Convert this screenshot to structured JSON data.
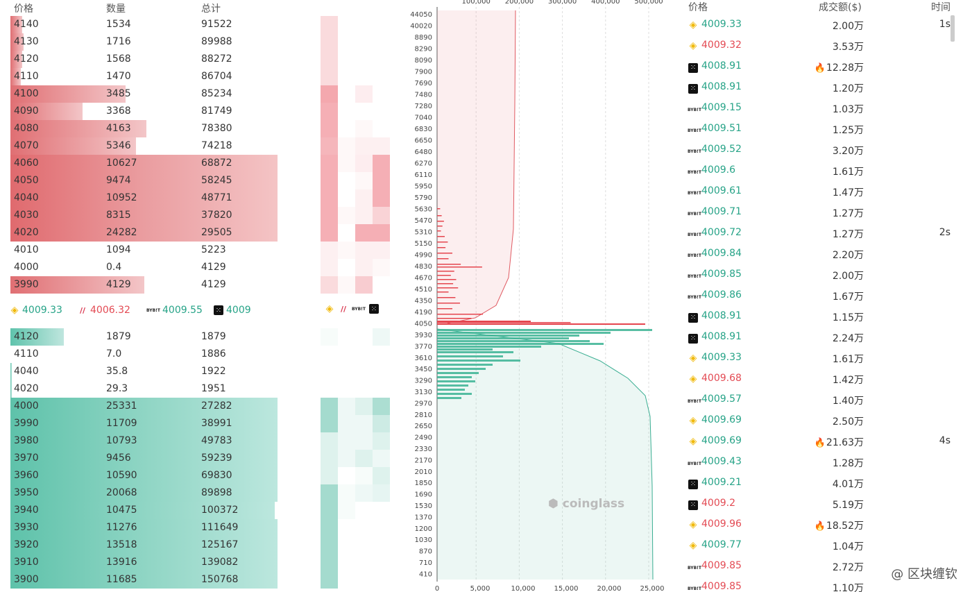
{
  "book": {
    "headers": {
      "price": "价格",
      "qty": "数量",
      "total": "总计"
    },
    "asks": [
      {
        "price": "4140",
        "qty": "1534",
        "total": "91522",
        "bar": 0.045
      },
      {
        "price": "4130",
        "qty": "1716",
        "total": "89988",
        "bar": 0.05
      },
      {
        "price": "4120",
        "qty": "1568",
        "total": "88272",
        "bar": 0.045
      },
      {
        "price": "4110",
        "qty": "1470",
        "total": "86704",
        "bar": 0.04
      },
      {
        "price": "4100",
        "qty": "3485",
        "total": "85234",
        "bar": 0.43
      },
      {
        "price": "4090",
        "qty": "3368",
        "total": "81749",
        "bar": 0.27
      },
      {
        "price": "4080",
        "qty": "4163",
        "total": "78380",
        "bar": 0.51
      },
      {
        "price": "4070",
        "qty": "5346",
        "total": "74218",
        "bar": 0.47
      },
      {
        "price": "4060",
        "qty": "10627",
        "total": "68872",
        "bar": 1.0
      },
      {
        "price": "4050",
        "qty": "9474",
        "total": "58245",
        "bar": 1.0
      },
      {
        "price": "4040",
        "qty": "10952",
        "total": "48771",
        "bar": 1.0
      },
      {
        "price": "4030",
        "qty": "8315",
        "total": "37820",
        "bar": 1.0
      },
      {
        "price": "4020",
        "qty": "24282",
        "total": "29505",
        "bar": 1.0
      },
      {
        "price": "4010",
        "qty": "1094",
        "total": "5223",
        "bar": 0.0
      },
      {
        "price": "4000",
        "qty": "0.4",
        "total": "4129",
        "bar": 0.0
      },
      {
        "price": "3990",
        "qty": "4129",
        "total": "4129",
        "bar": 0.5
      }
    ],
    "mid": [
      {
        "exchange": "binance-icon",
        "price": "4009.33",
        "dir": "up"
      },
      {
        "exchange": "bitflyer-icon",
        "price": "4006.32",
        "dir": "dn"
      },
      {
        "exchange": "bybit-icon",
        "price": "4009.55",
        "dir": "up"
      },
      {
        "exchange": "okx-icon",
        "price": "4009",
        "dir": "up"
      }
    ],
    "bids": [
      {
        "price": "4120",
        "qty": "1879",
        "total": "1879",
        "bar": 0.2
      },
      {
        "price": "4110",
        "qty": "7.0",
        "total": "1886",
        "bar": 0.0
      },
      {
        "price": "4040",
        "qty": "35.8",
        "total": "1922",
        "bar": 0.005
      },
      {
        "price": "4020",
        "qty": "29.3",
        "total": "1951",
        "bar": 0.005
      },
      {
        "price": "4000",
        "qty": "25331",
        "total": "27282",
        "bar": 1.0
      },
      {
        "price": "3990",
        "qty": "11709",
        "total": "38991",
        "bar": 1.0
      },
      {
        "price": "3980",
        "qty": "10793",
        "total": "49783",
        "bar": 1.0
      },
      {
        "price": "3970",
        "qty": "9456",
        "total": "59239",
        "bar": 1.0
      },
      {
        "price": "3960",
        "qty": "10590",
        "total": "69830",
        "bar": 1.0
      },
      {
        "price": "3950",
        "qty": "20068",
        "total": "89898",
        "bar": 1.0
      },
      {
        "price": "3940",
        "qty": "10475",
        "total": "100372",
        "bar": 0.99
      },
      {
        "price": "3930",
        "qty": "11276",
        "total": "111649",
        "bar": 1.0
      },
      {
        "price": "3920",
        "qty": "13518",
        "total": "125167",
        "bar": 1.0
      },
      {
        "price": "3910",
        "qty": "13916",
        "total": "139082",
        "bar": 1.0
      },
      {
        "price": "3900",
        "qty": "11685",
        "total": "150768",
        "bar": 1.0
      }
    ]
  },
  "depth": {
    "top_ticks": [
      "100,000",
      "200,000",
      "300,000",
      "400,000",
      "500,000"
    ],
    "bottom_ticks": [
      "0",
      "5,000",
      "10,000",
      "15,000",
      "20,000",
      "25,000"
    ],
    "ask_prices": [
      "44050",
      "40020",
      "8890",
      "8290",
      "8090",
      "7900",
      "7690",
      "7480",
      "7280",
      "7040",
      "6830",
      "6650",
      "6480",
      "6270",
      "6110",
      "5950",
      "5790",
      "5630",
      "5470",
      "5310",
      "5150",
      "4990",
      "4830",
      "4670",
      "4510",
      "4350",
      "4190",
      "4050"
    ],
    "bid_prices": [
      "3930",
      "3770",
      "3610",
      "3450",
      "3290",
      "3130",
      "2970",
      "2810",
      "2650",
      "2490",
      "2330",
      "2170",
      "2010",
      "1850",
      "1690",
      "1530",
      "1370",
      "1200",
      "1030",
      "870",
      "710",
      "410"
    ],
    "brand": "coinglass"
  },
  "trades": {
    "headers": {
      "price": "价格",
      "amount": "成交额($)",
      "time": "时间"
    },
    "rows": [
      {
        "icon": "binance-icon",
        "price": "4009.33",
        "dir": "up",
        "amount": "2.00万",
        "fire": false,
        "time": "1s"
      },
      {
        "icon": "binance-icon",
        "price": "4009.32",
        "dir": "dn",
        "amount": "3.53万",
        "fire": false,
        "time": ""
      },
      {
        "icon": "okx-icon",
        "price": "4008.91",
        "dir": "up",
        "amount": "12.28万",
        "fire": true,
        "time": ""
      },
      {
        "icon": "okx-icon",
        "price": "4008.91",
        "dir": "up",
        "amount": "1.20万",
        "fire": false,
        "time": ""
      },
      {
        "icon": "bybit-icon",
        "price": "4009.15",
        "dir": "up",
        "amount": "1.03万",
        "fire": false,
        "time": ""
      },
      {
        "icon": "bybit-icon",
        "price": "4009.51",
        "dir": "up",
        "amount": "1.25万",
        "fire": false,
        "time": ""
      },
      {
        "icon": "bybit-icon",
        "price": "4009.52",
        "dir": "up",
        "amount": "3.20万",
        "fire": false,
        "time": ""
      },
      {
        "icon": "bybit-icon",
        "price": "4009.6",
        "dir": "up",
        "amount": "1.61万",
        "fire": false,
        "time": ""
      },
      {
        "icon": "bybit-icon",
        "price": "4009.61",
        "dir": "up",
        "amount": "1.47万",
        "fire": false,
        "time": ""
      },
      {
        "icon": "bybit-icon",
        "price": "4009.71",
        "dir": "up",
        "amount": "1.27万",
        "fire": false,
        "time": ""
      },
      {
        "icon": "bybit-icon",
        "price": "4009.72",
        "dir": "up",
        "amount": "1.27万",
        "fire": false,
        "time": "2s"
      },
      {
        "icon": "bybit-icon",
        "price": "4009.84",
        "dir": "up",
        "amount": "2.20万",
        "fire": false,
        "time": ""
      },
      {
        "icon": "bybit-icon",
        "price": "4009.85",
        "dir": "up",
        "amount": "2.00万",
        "fire": false,
        "time": ""
      },
      {
        "icon": "bybit-icon",
        "price": "4009.86",
        "dir": "up",
        "amount": "1.67万",
        "fire": false,
        "time": ""
      },
      {
        "icon": "okx-icon",
        "price": "4008.91",
        "dir": "up",
        "amount": "1.15万",
        "fire": false,
        "time": ""
      },
      {
        "icon": "okx-icon",
        "price": "4008.91",
        "dir": "up",
        "amount": "2.24万",
        "fire": false,
        "time": ""
      },
      {
        "icon": "binance-icon",
        "price": "4009.33",
        "dir": "up",
        "amount": "1.61万",
        "fire": false,
        "time": ""
      },
      {
        "icon": "binance-icon",
        "price": "4009.68",
        "dir": "dn",
        "amount": "1.42万",
        "fire": false,
        "time": ""
      },
      {
        "icon": "bybit-icon",
        "price": "4009.57",
        "dir": "up",
        "amount": "1.40万",
        "fire": false,
        "time": ""
      },
      {
        "icon": "binance-icon",
        "price": "4009.69",
        "dir": "up",
        "amount": "2.50万",
        "fire": false,
        "time": ""
      },
      {
        "icon": "binance-icon",
        "price": "4009.69",
        "dir": "up",
        "amount": "21.63万",
        "fire": true,
        "time": "4s"
      },
      {
        "icon": "bybit-icon",
        "price": "4009.43",
        "dir": "up",
        "amount": "1.28万",
        "fire": false,
        "time": ""
      },
      {
        "icon": "okx-icon",
        "price": "4009.21",
        "dir": "up",
        "amount": "4.01万",
        "fire": false,
        "time": ""
      },
      {
        "icon": "okx-icon",
        "price": "4009.2",
        "dir": "dn",
        "amount": "5.19万",
        "fire": false,
        "time": ""
      },
      {
        "icon": "binance-icon",
        "price": "4009.96",
        "dir": "dn",
        "amount": "18.52万",
        "fire": true,
        "time": ""
      },
      {
        "icon": "binance-icon",
        "price": "4009.77",
        "dir": "up",
        "amount": "1.04万",
        "fire": false,
        "time": ""
      },
      {
        "icon": "bybit-icon",
        "price": "4009.85",
        "dir": "dn",
        "amount": "2.72万",
        "fire": false,
        "time": ""
      },
      {
        "icon": "bybit-icon",
        "price": "4009.85",
        "dir": "dn",
        "amount": "1.10万",
        "fire": false,
        "time": ""
      }
    ]
  },
  "watermark": {
    "text": "@ 区块缠钦"
  },
  "colors": {
    "up": "#26a387",
    "down": "#e34a53",
    "ask_bar": "#e06f73",
    "bid_bar": "#5fc3ac",
    "binance": "#f0b90b"
  }
}
